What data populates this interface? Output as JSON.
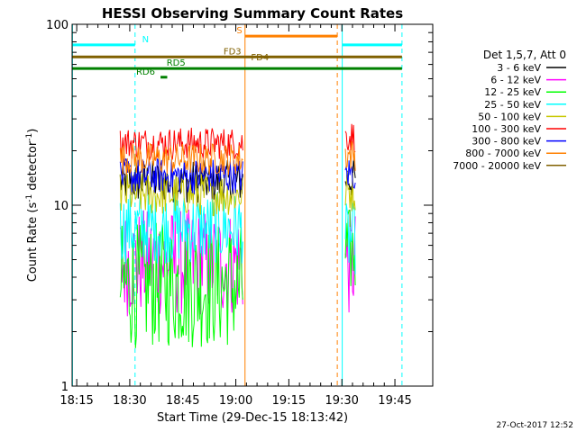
{
  "chart_data": {
    "type": "line",
    "title": "HESSI Observing Summary Count Rates",
    "xlabel": "Start Time (29-Dec-15 18:13:42)",
    "ylabel_main": "Count Rate (s",
    "ylabel_sup": "-1",
    "ylabel_rest": " detector",
    "ylabel_close": ")",
    "timestamp": "27-Oct-2017 12:52",
    "yscale": "log",
    "ylim": [
      1,
      100
    ],
    "xlim_minutes": [
      1093.7,
      1195.7
    ],
    "x_ticks": [
      {
        "label": "18:15",
        "minutes": 1095
      },
      {
        "label": "18:30",
        "minutes": 1110
      },
      {
        "label": "18:45",
        "minutes": 1125
      },
      {
        "label": "19:00",
        "minutes": 1140
      },
      {
        "label": "19:15",
        "minutes": 1155
      },
      {
        "label": "19:30",
        "minutes": 1170
      },
      {
        "label": "19:45",
        "minutes": 1185
      }
    ],
    "y_ticks": [
      {
        "label": "1",
        "value": 1
      },
      {
        "label": "10",
        "value": 10
      },
      {
        "label": "100",
        "value": 100
      }
    ],
    "legend": {
      "placement": "right",
      "header": "Det 1,5,7, Att 0",
      "entries": [
        {
          "label": "3 - 6 keV",
          "color": "#000000"
        },
        {
          "label": "6 - 12 keV",
          "color": "#ff00ff"
        },
        {
          "label": "12 - 25 keV",
          "color": "#00ff00"
        },
        {
          "label": "25 - 50 keV",
          "color": "#00ffff"
        },
        {
          "label": "50 - 100 keV",
          "color": "#c8c800"
        },
        {
          "label": "100 - 300 keV",
          "color": "#ff0000"
        },
        {
          "label": "300 - 800 keV",
          "color": "#0000ff"
        },
        {
          "label": "800 - 7000 keV",
          "color": "#ff8000"
        },
        {
          "label": "7000 - 20000 keV",
          "color": "#806000"
        }
      ]
    },
    "series": [
      {
        "name": "3 - 6 keV",
        "color": "#000000",
        "segments": [
          {
            "start": 1107.3,
            "end": 1142.0,
            "level": 13.5,
            "spread": 0.12
          },
          {
            "start": 1171.0,
            "end": 1174.0,
            "level": 14.0,
            "spread": 0.12
          }
        ]
      },
      {
        "name": "6 - 12 keV",
        "color": "#ff00ff",
        "segments": [
          {
            "start": 1107.3,
            "end": 1142.0,
            "level": 4.8,
            "spread": 0.3
          },
          {
            "start": 1171.0,
            "end": 1174.0,
            "level": 4.8,
            "spread": 0.3
          }
        ]
      },
      {
        "name": "12 - 25 keV",
        "color": "#00ff00",
        "segments": [
          {
            "start": 1107.3,
            "end": 1142.0,
            "level": 3.6,
            "spread": 0.35
          },
          {
            "start": 1171.0,
            "end": 1174.0,
            "level": 5.5,
            "spread": 0.25
          }
        ]
      },
      {
        "name": "25 - 50 keV",
        "color": "#00ffff",
        "segments": [
          {
            "start": 1107.3,
            "end": 1142.0,
            "level": 7.5,
            "spread": 0.2
          },
          {
            "start": 1171.0,
            "end": 1174.0,
            "level": 6.5,
            "spread": 0.2
          }
        ]
      },
      {
        "name": "50 - 100 keV",
        "color": "#c8c800",
        "segments": [
          {
            "start": 1107.3,
            "end": 1142.0,
            "level": 11.5,
            "spread": 0.12
          },
          {
            "start": 1171.0,
            "end": 1174.0,
            "level": 12.0,
            "spread": 0.12
          }
        ]
      },
      {
        "name": "100 - 300 keV",
        "color": "#ff0000",
        "segments": [
          {
            "start": 1107.3,
            "end": 1142.0,
            "level": 22.0,
            "spread": 0.09
          },
          {
            "start": 1171.0,
            "end": 1174.0,
            "level": 24.0,
            "spread": 0.09
          }
        ]
      },
      {
        "name": "300 - 800 keV",
        "color": "#0000ff",
        "segments": [
          {
            "start": 1107.3,
            "end": 1142.0,
            "level": 14.5,
            "spread": 0.1
          },
          {
            "start": 1171.0,
            "end": 1174.0,
            "level": 15.0,
            "spread": 0.1
          }
        ]
      },
      {
        "name": "800 - 7000 keV",
        "color": "#ff8000",
        "segments": [
          {
            "start": 1107.3,
            "end": 1142.0,
            "level": 18.0,
            "spread": 0.09
          },
          {
            "start": 1171.0,
            "end": 1174.0,
            "level": 19.0,
            "spread": 0.09
          }
        ]
      }
    ],
    "vertical_lines": [
      {
        "minutes": 1093.8,
        "color": "#00ffff",
        "style": "solid"
      },
      {
        "minutes": 1111.5,
        "color": "#00ffff",
        "style": "dashed"
      },
      {
        "minutes": 1142.6,
        "color": "#ff8000",
        "style": "solid"
      },
      {
        "minutes": 1168.7,
        "color": "#ff8000",
        "style": "dashed"
      },
      {
        "minutes": 1170.1,
        "color": "#00ffff",
        "style": "solid"
      },
      {
        "minutes": 1187.0,
        "color": "#00ffff",
        "style": "dashed"
      }
    ],
    "flag_bars": [
      {
        "label": "N",
        "label_color": "#00ffff",
        "color": "#00ffff",
        "value": 77,
        "start": 1093.8,
        "end": 1111.5,
        "label_at": 1113.5
      },
      {
        "label": "",
        "label_color": "#00ffff",
        "color": "#00ffff",
        "value": 77,
        "start": 1170.1,
        "end": 1187.0,
        "label_at": 0
      },
      {
        "label": "S",
        "label_color": "#ff8000",
        "color": "#ff8000",
        "value": 86,
        "start": 1142.6,
        "end": 1168.7,
        "label_at": 1140.2
      },
      {
        "label": "FD3",
        "label_color": "#806000",
        "color": "#806000",
        "value": 66,
        "start": 1093.8,
        "end": 1187.0,
        "label_at": 1136.5
      },
      {
        "label": "FD4",
        "label_color": "#806000",
        "color": "#806000",
        "value": 61,
        "start": 1093.8,
        "end": 1093.8,
        "label_at": 1144.3
      },
      {
        "label": "RD5",
        "label_color": "#008000",
        "color": "#008000",
        "value": 57,
        "start": 1093.8,
        "end": 1187.0,
        "label_at": 1120.4
      },
      {
        "label": "RD6",
        "label_color": "#008000",
        "color": "#008000",
        "value": 51,
        "start": 1118.7,
        "end": 1120.6,
        "label_at": 1111.8
      }
    ]
  }
}
